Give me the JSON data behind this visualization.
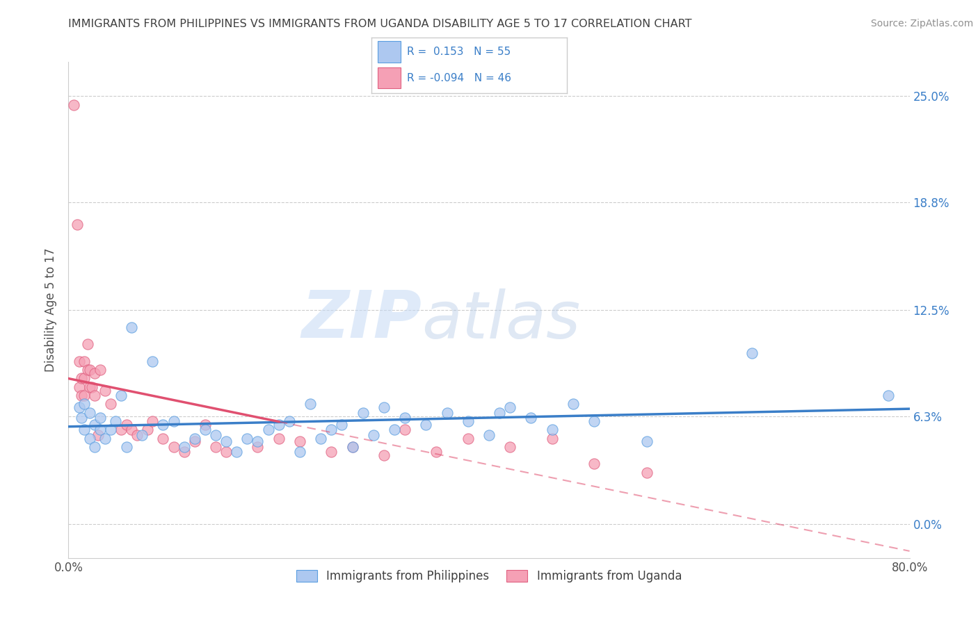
{
  "title": "IMMIGRANTS FROM PHILIPPINES VS IMMIGRANTS FROM UGANDA DISABILITY AGE 5 TO 17 CORRELATION CHART",
  "source": "Source: ZipAtlas.com",
  "ylabel": "Disability Age 5 to 17",
  "xlim": [
    0.0,
    80.0
  ],
  "ylim": [
    -2.0,
    27.0
  ],
  "ytick_vals": [
    0.0,
    6.3,
    12.5,
    18.8,
    25.0
  ],
  "ytick_labels": [
    "0.0%",
    "6.3%",
    "12.5%",
    "18.8%",
    "25.0%"
  ],
  "label1": "Immigrants from Philippines",
  "label2": "Immigrants from Uganda",
  "blue_color": "#adc8f0",
  "blue_edge": "#5a9ee0",
  "pink_color": "#f5a0b5",
  "pink_edge": "#e06080",
  "blue_line_color": "#3a7ec8",
  "pink_line_color": "#e05070",
  "watermark_zip": "ZIP",
  "watermark_atlas": "atlas",
  "philippines_x": [
    1.0,
    1.2,
    1.5,
    1.5,
    2.0,
    2.0,
    2.5,
    2.5,
    3.0,
    3.0,
    3.5,
    4.0,
    4.5,
    5.0,
    5.5,
    6.0,
    7.0,
    8.0,
    9.0,
    10.0,
    11.0,
    12.0,
    13.0,
    14.0,
    15.0,
    16.0,
    17.0,
    18.0,
    19.0,
    20.0,
    21.0,
    22.0,
    23.0,
    24.0,
    25.0,
    26.0,
    27.0,
    28.0,
    29.0,
    30.0,
    31.0,
    32.0,
    34.0,
    36.0,
    38.0,
    40.0,
    41.0,
    42.0,
    44.0,
    46.0,
    48.0,
    50.0,
    55.0,
    65.0,
    78.0
  ],
  "philippines_y": [
    6.8,
    6.2,
    7.0,
    5.5,
    6.5,
    5.0,
    5.8,
    4.5,
    6.2,
    5.5,
    5.0,
    5.5,
    6.0,
    7.5,
    4.5,
    11.5,
    5.2,
    9.5,
    5.8,
    6.0,
    4.5,
    5.0,
    5.5,
    5.2,
    4.8,
    4.2,
    5.0,
    4.8,
    5.5,
    5.8,
    6.0,
    4.2,
    7.0,
    5.0,
    5.5,
    5.8,
    4.5,
    6.5,
    5.2,
    6.8,
    5.5,
    6.2,
    5.8,
    6.5,
    6.0,
    5.2,
    6.5,
    6.8,
    6.2,
    5.5,
    7.0,
    6.0,
    4.8,
    10.0,
    7.5
  ],
  "uganda_x": [
    0.5,
    0.8,
    1.0,
    1.0,
    1.2,
    1.2,
    1.5,
    1.5,
    1.5,
    1.8,
    1.8,
    2.0,
    2.0,
    2.2,
    2.5,
    2.5,
    2.8,
    3.0,
    3.5,
    4.0,
    5.0,
    5.5,
    6.0,
    6.5,
    7.5,
    8.0,
    9.0,
    10.0,
    11.0,
    12.0,
    13.0,
    14.0,
    15.0,
    18.0,
    20.0,
    22.0,
    25.0,
    27.0,
    30.0,
    32.0,
    35.0,
    38.0,
    42.0,
    46.0,
    50.0,
    55.0
  ],
  "uganda_y": [
    24.5,
    17.5,
    9.5,
    8.0,
    8.5,
    7.5,
    9.5,
    8.5,
    7.5,
    10.5,
    9.0,
    9.0,
    8.0,
    8.0,
    8.8,
    7.5,
    5.2,
    9.0,
    7.8,
    7.0,
    5.5,
    5.8,
    5.5,
    5.2,
    5.5,
    6.0,
    5.0,
    4.5,
    4.2,
    4.8,
    5.8,
    4.5,
    4.2,
    4.5,
    5.0,
    4.8,
    4.2,
    4.5,
    4.0,
    5.5,
    4.2,
    5.0,
    4.5,
    5.0,
    3.5,
    3.0
  ]
}
